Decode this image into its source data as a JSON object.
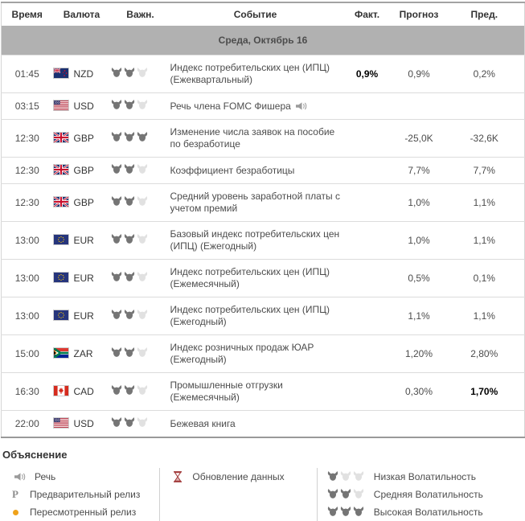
{
  "table": {
    "columns": [
      "Время",
      "Валюта",
      "Важн.",
      "Событие",
      "Факт.",
      "Прогноз",
      "Пред."
    ],
    "date_header": "Среда, Октябрь 16",
    "rows": [
      {
        "time": "01:45",
        "currency": "NZD",
        "flag": "nz",
        "volatility": 2,
        "event": "Индекс потребительских цен (ИПЦ) (Ежеквартальный)",
        "speech": false,
        "actual": "0,9%",
        "actual_bold": true,
        "forecast": "0,9%",
        "previous": "0,2%",
        "previous_bold": false
      },
      {
        "time": "03:15",
        "currency": "USD",
        "flag": "us",
        "volatility": 2,
        "event": "Речь члена FOMC Фишера",
        "speech": true,
        "actual": "",
        "actual_bold": false,
        "forecast": "",
        "previous": "",
        "previous_bold": false
      },
      {
        "time": "12:30",
        "currency": "GBP",
        "flag": "gb",
        "volatility": 3,
        "event": "Изменение числа заявок на пособие по безработице",
        "speech": false,
        "actual": "",
        "actual_bold": false,
        "forecast": "-25,0K",
        "previous": "-32,6K",
        "previous_bold": false
      },
      {
        "time": "12:30",
        "currency": "GBP",
        "flag": "gb",
        "volatility": 2,
        "event": "Коэффициент безработицы",
        "speech": false,
        "actual": "",
        "actual_bold": false,
        "forecast": "7,7%",
        "previous": "7,7%",
        "previous_bold": false
      },
      {
        "time": "12:30",
        "currency": "GBP",
        "flag": "gb",
        "volatility": 2,
        "event": "Средний уровень заработной платы с учетом премий",
        "speech": false,
        "actual": "",
        "actual_bold": false,
        "forecast": "1,0%",
        "previous": "1,1%",
        "previous_bold": false
      },
      {
        "time": "13:00",
        "currency": "EUR",
        "flag": "eu",
        "volatility": 2,
        "event": "Базовый индекс потребительских цен (ИПЦ) (Ежегодный)",
        "speech": false,
        "actual": "",
        "actual_bold": false,
        "forecast": "1,0%",
        "previous": "1,1%",
        "previous_bold": false
      },
      {
        "time": "13:00",
        "currency": "EUR",
        "flag": "eu",
        "volatility": 2,
        "event": "Индекс потребительских цен (ИПЦ) (Ежемесячный)",
        "speech": false,
        "actual": "",
        "actual_bold": false,
        "forecast": "0,5%",
        "previous": "0,1%",
        "previous_bold": false
      },
      {
        "time": "13:00",
        "currency": "EUR",
        "flag": "eu",
        "volatility": 2,
        "event": "Индекс потребительских цен (ИПЦ) (Ежегодный)",
        "speech": false,
        "actual": "",
        "actual_bold": false,
        "forecast": "1,1%",
        "previous": "1,1%",
        "previous_bold": false
      },
      {
        "time": "15:00",
        "currency": "ZAR",
        "flag": "za",
        "volatility": 2,
        "event": "Индекс розничных продаж ЮАР (Ежегодный)",
        "speech": false,
        "actual": "",
        "actual_bold": false,
        "forecast": "1,20%",
        "previous": "2,80%",
        "previous_bold": false
      },
      {
        "time": "16:30",
        "currency": "CAD",
        "flag": "ca",
        "volatility": 2,
        "event": "Промышленные отгрузки (Ежемесячный)",
        "speech": false,
        "actual": "",
        "actual_bold": false,
        "forecast": "0,30%",
        "previous": "1,70%",
        "previous_bold": true
      },
      {
        "time": "22:00",
        "currency": "USD",
        "flag": "us",
        "volatility": 2,
        "event": "Бежевая книга",
        "speech": false,
        "actual": "",
        "actual_bold": false,
        "forecast": "",
        "previous": "",
        "previous_bold": false
      }
    ]
  },
  "legend": {
    "title": "Объяснение",
    "col1": [
      {
        "icon": "speech-icon",
        "label": "Речь"
      },
      {
        "icon": "preliminary-release-icon",
        "symbol": "P",
        "label": "Предварительный релиз"
      },
      {
        "icon": "revised-release-icon",
        "label": "Пересмотренный релиз"
      }
    ],
    "col2": [
      {
        "icon": "hourglass-icon",
        "label": "Обновление данных"
      }
    ],
    "col3": [
      {
        "volatility": 1,
        "label": "Низкая Волатильность"
      },
      {
        "volatility": 2,
        "label": "Средняя Волатильность"
      },
      {
        "volatility": 3,
        "label": "Высокая Волатильность"
      }
    ]
  },
  "colors": {
    "date_band_bg": "#b1b1b1",
    "bull_active": "#757575",
    "bull_inactive": "#e1e1e1",
    "revised_dot_orange": "#efa21b",
    "hourglass_maroon": "#a23b3b",
    "row_border": "#dcdcdc",
    "table_border": "#999999"
  }
}
